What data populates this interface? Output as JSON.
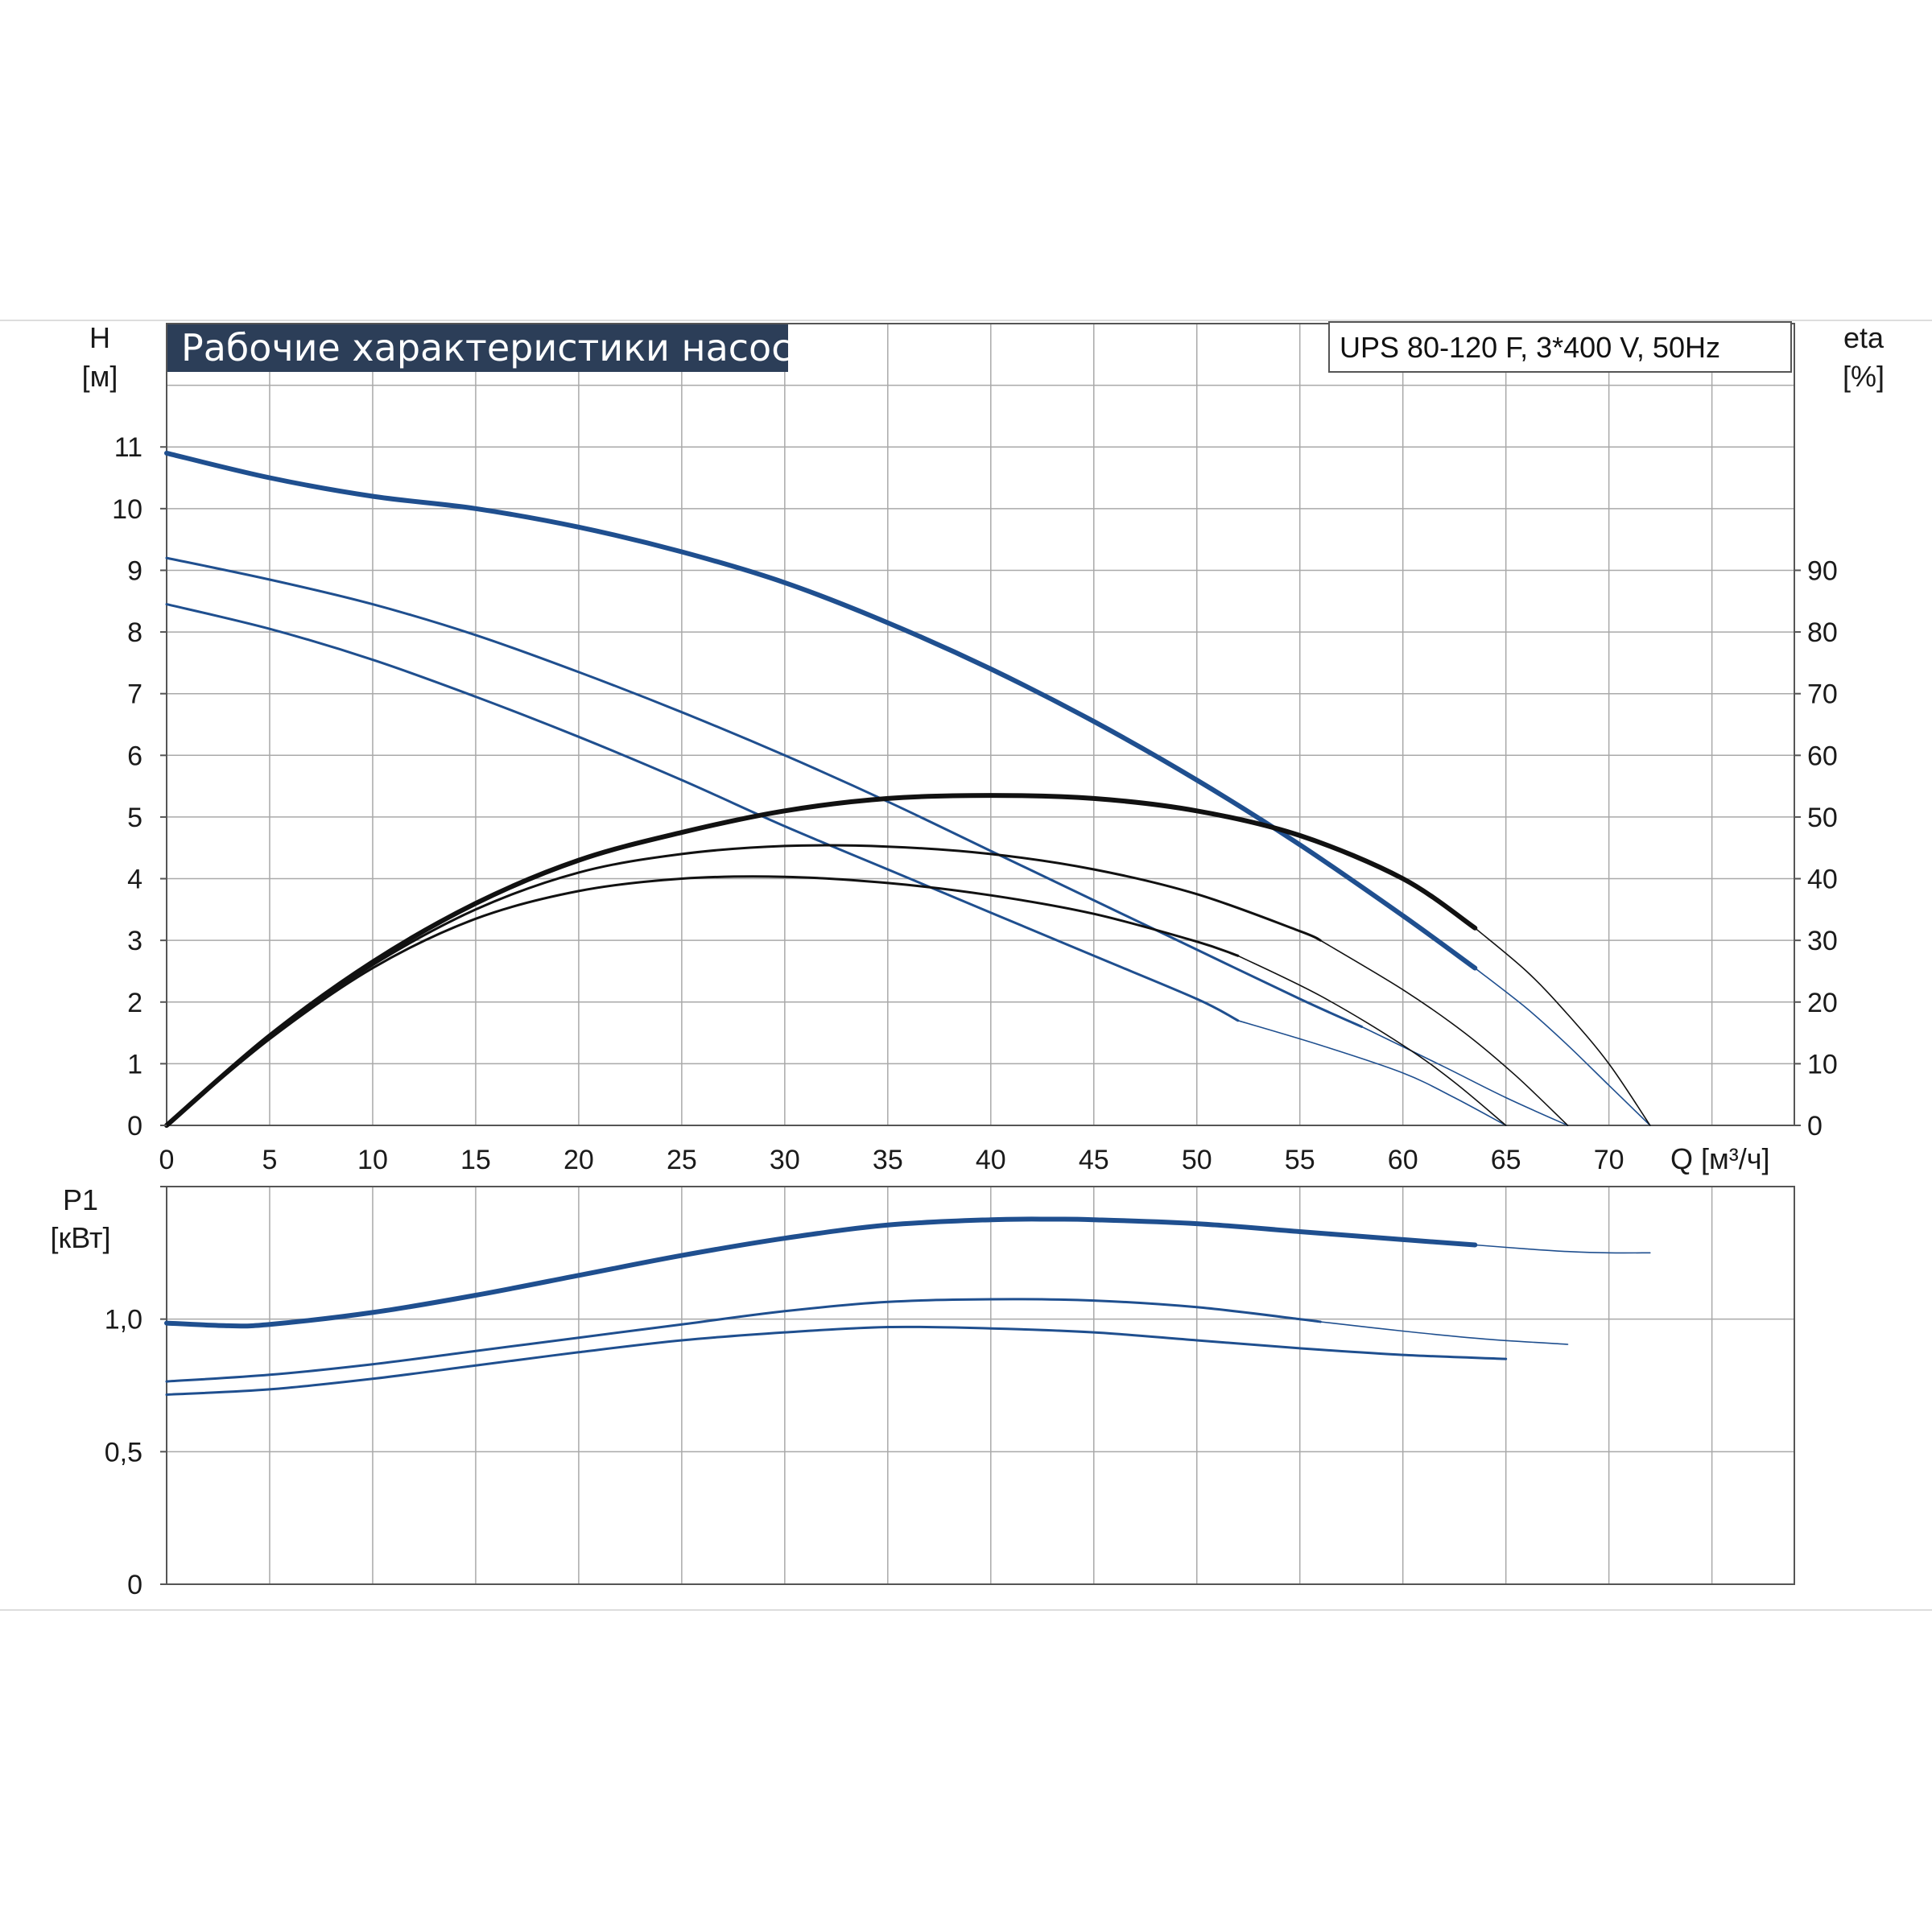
{
  "chart_data": [
    {
      "type": "line",
      "title": "Рабочие характеристики насоса",
      "model_label": "UPS 80-120 F, 3*400 V, 50Hz",
      "ylabel_left": [
        "H",
        "[м]"
      ],
      "ylabel_right": [
        "eta",
        "[%]"
      ],
      "xlabel": "Q [м³/ч]",
      "xlim": [
        0,
        79
      ],
      "ylim_left": [
        0,
        13
      ],
      "ylim_right": [
        0,
        130
      ],
      "x_ticks": [
        0,
        5,
        10,
        15,
        20,
        25,
        30,
        35,
        40,
        45,
        50,
        55,
        60,
        65,
        70
      ],
      "y_ticks_left": [
        0,
        1,
        2,
        3,
        4,
        5,
        6,
        7,
        8,
        9,
        10,
        11
      ],
      "y_ticks_right": [
        0,
        10,
        20,
        30,
        40,
        50,
        60,
        70,
        80,
        90
      ],
      "grid": true,
      "colors": {
        "head": "#1f4f8f",
        "efficiency": "#111111",
        "grid": "#a9a9a9",
        "title_bg": "#2c3e58"
      },
      "series": [
        {
          "kind": "head",
          "axis": "left",
          "emphasis": "thick",
          "x": [
            0,
            5,
            10,
            15,
            20,
            25,
            30,
            35,
            40,
            45,
            50,
            55,
            60,
            63.5
          ],
          "y": [
            10.9,
            10.5,
            10.2,
            10.0,
            9.7,
            9.3,
            8.8,
            8.15,
            7.4,
            6.55,
            5.6,
            4.55,
            3.4,
            2.55
          ],
          "ext_x": [
            63.5,
            66,
            68,
            70,
            72
          ],
          "ext_y": [
            2.55,
            1.9,
            1.3,
            0.65,
            0
          ]
        },
        {
          "kind": "head",
          "axis": "left",
          "emphasis": "medium",
          "x": [
            0,
            5,
            10,
            15,
            20,
            25,
            30,
            35,
            40,
            45,
            50,
            55,
            58
          ],
          "y": [
            9.2,
            8.85,
            8.45,
            7.95,
            7.35,
            6.7,
            6.0,
            5.25,
            4.45,
            3.65,
            2.85,
            2.05,
            1.6
          ],
          "ext_x": [
            58,
            62,
            65,
            68
          ],
          "ext_y": [
            1.6,
            0.95,
            0.45,
            0
          ]
        },
        {
          "kind": "head",
          "axis": "left",
          "emphasis": "medium",
          "x": [
            0,
            5,
            10,
            15,
            20,
            25,
            30,
            35,
            40,
            45,
            50,
            52
          ],
          "y": [
            8.45,
            8.05,
            7.55,
            6.95,
            6.3,
            5.6,
            4.85,
            4.15,
            3.45,
            2.75,
            2.05,
            1.7
          ],
          "ext_x": [
            52,
            56,
            60,
            62.5,
            65
          ],
          "ext_y": [
            1.7,
            1.3,
            0.85,
            0.45,
            0
          ]
        },
        {
          "kind": "efficiency",
          "axis": "right",
          "emphasis": "thick",
          "x": [
            0,
            5,
            10,
            15,
            20,
            25,
            30,
            35,
            40,
            45,
            50,
            55,
            60,
            63.5
          ],
          "y": [
            0,
            14.5,
            26.5,
            36,
            43,
            47.5,
            51,
            53,
            53.5,
            53,
            51,
            47,
            40,
            32
          ],
          "ext_x": [
            63.5,
            66,
            68,
            70,
            72
          ],
          "ext_y": [
            32,
            25,
            18,
            10,
            0
          ]
        },
        {
          "kind": "efficiency",
          "axis": "right",
          "emphasis": "medium",
          "x": [
            0,
            5,
            10,
            15,
            20,
            25,
            30,
            35,
            40,
            45,
            50,
            55,
            56
          ],
          "y": [
            0,
            14.5,
            26,
            35,
            41,
            44,
            45.3,
            45.2,
            44,
            41.5,
            37.5,
            31.5,
            30
          ],
          "ext_x": [
            56,
            60,
            63,
            65.5,
            68
          ],
          "ext_y": [
            30,
            22,
            15,
            8,
            0
          ]
        },
        {
          "kind": "efficiency",
          "axis": "right",
          "emphasis": "medium",
          "x": [
            0,
            5,
            10,
            15,
            20,
            25,
            30,
            35,
            40,
            45,
            50,
            52
          ],
          "y": [
            0,
            14,
            25.5,
            33.5,
            38,
            40,
            40.3,
            39.3,
            37.3,
            34.3,
            29.8,
            27.5
          ],
          "ext_x": [
            52,
            56,
            60,
            62.5,
            65
          ],
          "ext_y": [
            27.5,
            21,
            13,
            7,
            0
          ]
        }
      ]
    },
    {
      "type": "line",
      "ylabel": [
        "P1",
        "[кВт]"
      ],
      "xlim": [
        0,
        79
      ],
      "ylim": [
        0,
        1.5
      ],
      "y_ticks": [
        {
          "value": 0,
          "label": "0"
        },
        {
          "value": 0.5,
          "label": "0,5"
        },
        {
          "value": 1.0,
          "label": "1,0"
        },
        {
          "value": 1.5,
          "label": ""
        }
      ],
      "grid": true,
      "series": [
        {
          "kind": "power",
          "emphasis": "thick",
          "x": [
            0,
            3,
            5,
            10,
            15,
            20,
            25,
            30,
            35,
            40,
            43,
            45,
            50,
            55,
            60,
            63.5
          ],
          "y": [
            0.985,
            0.975,
            0.98,
            1.025,
            1.09,
            1.165,
            1.24,
            1.305,
            1.355,
            1.375,
            1.377,
            1.375,
            1.36,
            1.33,
            1.3,
            1.28
          ],
          "ext_x": [
            63.5,
            66,
            68,
            70,
            72
          ],
          "ext_y": [
            1.28,
            1.265,
            1.255,
            1.25,
            1.25
          ]
        },
        {
          "kind": "power",
          "emphasis": "medium",
          "x": [
            0,
            5,
            10,
            15,
            20,
            25,
            30,
            35,
            40,
            45,
            50,
            55,
            56
          ],
          "y": [
            0.765,
            0.79,
            0.83,
            0.88,
            0.93,
            0.98,
            1.03,
            1.065,
            1.075,
            1.07,
            1.045,
            1.0,
            0.99
          ],
          "ext_x": [
            56,
            60,
            64,
            68
          ],
          "ext_y": [
            0.99,
            0.955,
            0.925,
            0.905
          ]
        },
        {
          "kind": "power",
          "emphasis": "medium",
          "x": [
            0,
            5,
            10,
            15,
            20,
            25,
            30,
            35,
            40,
            45,
            50,
            55,
            60,
            65
          ],
          "y": [
            0.715,
            0.735,
            0.775,
            0.825,
            0.875,
            0.92,
            0.95,
            0.97,
            0.965,
            0.95,
            0.92,
            0.89,
            0.865,
            0.85
          ]
        }
      ]
    }
  ]
}
